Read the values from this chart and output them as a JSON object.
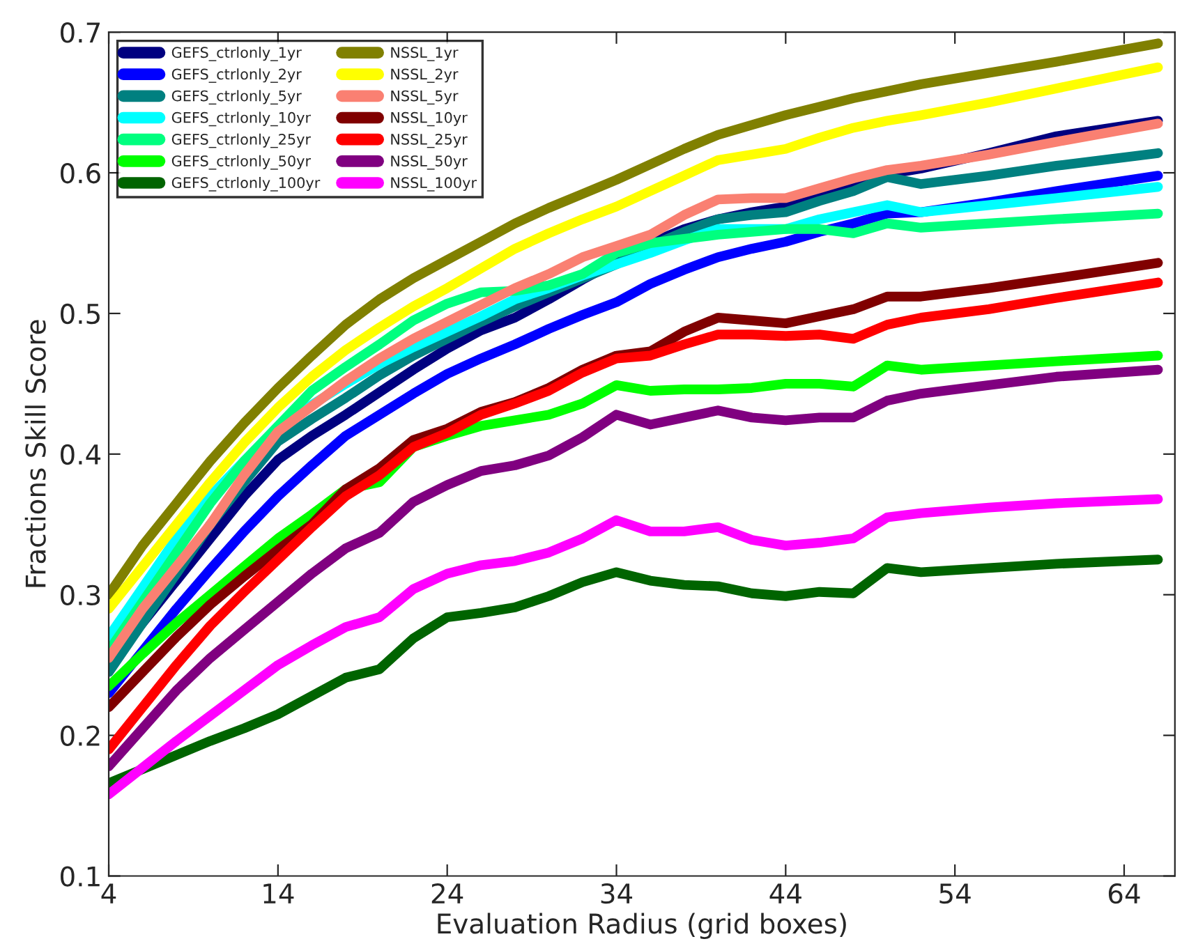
{
  "chart_data": {
    "type": "line",
    "xlabel": "Evaluation Radius (grid boxes)",
    "ylabel": "Fractions Skill Score",
    "x": [
      4,
      6,
      8,
      10,
      12,
      14,
      16,
      18,
      20,
      22,
      24,
      26,
      28,
      30,
      32,
      34,
      36,
      38,
      40,
      42,
      44,
      46,
      48,
      50,
      52,
      56,
      60,
      66
    ],
    "xlim": [
      4,
      67
    ],
    "xticks": [
      4,
      14,
      24,
      34,
      44,
      54,
      64
    ],
    "ylim": [
      0.1,
      0.7
    ],
    "yticks": [
      0.1,
      0.2,
      0.3,
      0.4,
      0.5,
      0.6,
      0.7
    ],
    "grid": false,
    "legend": "top left",
    "marker": "none",
    "line_style": "solid",
    "series": [
      {
        "name": "GEFS_ctrlonly_1yr",
        "color": "#000080",
        "values": [
          0.25,
          0.28,
          0.31,
          0.34,
          0.37,
          0.396,
          0.413,
          0.428,
          0.444,
          0.46,
          0.475,
          0.488,
          0.497,
          0.51,
          0.524,
          0.537,
          0.55,
          0.56,
          0.567,
          0.572,
          0.576,
          0.584,
          0.591,
          0.599,
          0.603,
          0.614,
          0.626,
          0.637
        ]
      },
      {
        "name": "GEFS_ctrlonly_2yr",
        "color": "#0000ff",
        "values": [
          0.23,
          0.26,
          0.29,
          0.318,
          0.345,
          0.37,
          0.392,
          0.413,
          0.428,
          0.443,
          0.457,
          0.468,
          0.478,
          0.489,
          0.499,
          0.508,
          0.521,
          0.531,
          0.54,
          0.546,
          0.551,
          0.558,
          0.564,
          0.571,
          0.572,
          0.579,
          0.587,
          0.598
        ]
      },
      {
        "name": "GEFS_ctrlonly_5yr",
        "color": "#008080",
        "values": [
          0.245,
          0.28,
          0.315,
          0.35,
          0.38,
          0.409,
          0.425,
          0.44,
          0.456,
          0.47,
          0.482,
          0.494,
          0.505,
          0.515,
          0.525,
          0.535,
          0.548,
          0.558,
          0.567,
          0.57,
          0.572,
          0.58,
          0.587,
          0.597,
          0.592,
          0.598,
          0.605,
          0.614
        ]
      },
      {
        "name": "GEFS_ctrlonly_10yr",
        "color": "#00ffff",
        "values": [
          0.27,
          0.305,
          0.34,
          0.37,
          0.395,
          0.418,
          0.435,
          0.45,
          0.464,
          0.476,
          0.487,
          0.498,
          0.51,
          0.518,
          0.527,
          0.535,
          0.543,
          0.552,
          0.56,
          0.56,
          0.56,
          0.567,
          0.572,
          0.577,
          0.572,
          0.577,
          0.582,
          0.59
        ]
      },
      {
        "name": "GEFS_ctrlonly_25yr",
        "color": "#00ff7f",
        "values": [
          0.26,
          0.295,
          0.33,
          0.365,
          0.395,
          0.42,
          0.445,
          0.462,
          0.478,
          0.495,
          0.507,
          0.515,
          0.516,
          0.52,
          0.528,
          0.543,
          0.55,
          0.553,
          0.556,
          0.558,
          0.56,
          0.56,
          0.557,
          0.564,
          0.561,
          0.564,
          0.567,
          0.571
        ]
      },
      {
        "name": "GEFS_ctrlonly_50yr",
        "color": "#00ff00",
        "values": [
          0.235,
          0.258,
          0.28,
          0.3,
          0.32,
          0.34,
          0.357,
          0.375,
          0.38,
          0.405,
          0.413,
          0.42,
          0.424,
          0.428,
          0.436,
          0.449,
          0.445,
          0.446,
          0.446,
          0.447,
          0.45,
          0.45,
          0.448,
          0.463,
          0.46,
          0.463,
          0.466,
          0.47
        ]
      },
      {
        "name": "GEFS_ctrlonly_100yr",
        "color": "#006400",
        "values": [
          0.166,
          0.176,
          0.186,
          0.196,
          0.205,
          0.215,
          0.228,
          0.241,
          0.247,
          0.269,
          0.284,
          0.287,
          0.291,
          0.299,
          0.309,
          0.316,
          0.31,
          0.307,
          0.306,
          0.301,
          0.299,
          0.302,
          0.301,
          0.319,
          0.316,
          0.319,
          0.322,
          0.325
        ]
      },
      {
        "name": "NSSL_1yr",
        "color": "#808000",
        "values": [
          0.3,
          0.335,
          0.365,
          0.395,
          0.422,
          0.447,
          0.47,
          0.492,
          0.51,
          0.525,
          0.538,
          0.551,
          0.564,
          0.575,
          0.585,
          0.595,
          0.606,
          0.617,
          0.627,
          0.634,
          0.641,
          0.647,
          0.653,
          0.658,
          0.663,
          0.671,
          0.679,
          0.692
        ]
      },
      {
        "name": "NSSL_2yr",
        "color": "#ffff00",
        "values": [
          0.29,
          0.32,
          0.35,
          0.38,
          0.408,
          0.433,
          0.455,
          0.474,
          0.49,
          0.505,
          0.518,
          0.532,
          0.546,
          0.557,
          0.567,
          0.576,
          0.587,
          0.598,
          0.609,
          0.613,
          0.617,
          0.625,
          0.632,
          0.637,
          0.641,
          0.65,
          0.66,
          0.675
        ]
      },
      {
        "name": "NSSL_5yr",
        "color": "#fa8072",
        "values": [
          0.255,
          0.29,
          0.32,
          0.35,
          0.385,
          0.416,
          0.434,
          0.452,
          0.468,
          0.482,
          0.494,
          0.506,
          0.518,
          0.528,
          0.54,
          0.548,
          0.556,
          0.57,
          0.581,
          0.582,
          0.582,
          0.589,
          0.596,
          0.602,
          0.605,
          0.613,
          0.622,
          0.635
        ]
      },
      {
        "name": "NSSL_10yr",
        "color": "#800000",
        "values": [
          0.22,
          0.245,
          0.27,
          0.293,
          0.313,
          0.332,
          0.35,
          0.375,
          0.39,
          0.41,
          0.418,
          0.43,
          0.437,
          0.447,
          0.46,
          0.47,
          0.473,
          0.487,
          0.497,
          0.495,
          0.493,
          0.498,
          0.503,
          0.512,
          0.512,
          0.518,
          0.525,
          0.536
        ]
      },
      {
        "name": "NSSL_25yr",
        "color": "#ff0000",
        "values": [
          0.19,
          0.22,
          0.25,
          0.278,
          0.302,
          0.325,
          0.348,
          0.37,
          0.385,
          0.405,
          0.415,
          0.428,
          0.436,
          0.445,
          0.458,
          0.468,
          0.47,
          0.478,
          0.485,
          0.485,
          0.484,
          0.485,
          0.482,
          0.492,
          0.497,
          0.503,
          0.511,
          0.522
        ]
      },
      {
        "name": "NSSL_50yr",
        "color": "#800080",
        "values": [
          0.178,
          0.205,
          0.232,
          0.255,
          0.275,
          0.295,
          0.315,
          0.333,
          0.344,
          0.366,
          0.378,
          0.388,
          0.392,
          0.399,
          0.412,
          0.428,
          0.421,
          0.426,
          0.431,
          0.426,
          0.424,
          0.426,
          0.426,
          0.438,
          0.443,
          0.449,
          0.455,
          0.46
        ]
      },
      {
        "name": "NSSL_100yr",
        "color": "#ff00ff",
        "values": [
          0.158,
          0.177,
          0.196,
          0.214,
          0.232,
          0.25,
          0.264,
          0.277,
          0.284,
          0.304,
          0.315,
          0.321,
          0.324,
          0.33,
          0.34,
          0.353,
          0.345,
          0.345,
          0.348,
          0.339,
          0.335,
          0.337,
          0.34,
          0.355,
          0.358,
          0.362,
          0.365,
          0.368
        ]
      }
    ]
  }
}
